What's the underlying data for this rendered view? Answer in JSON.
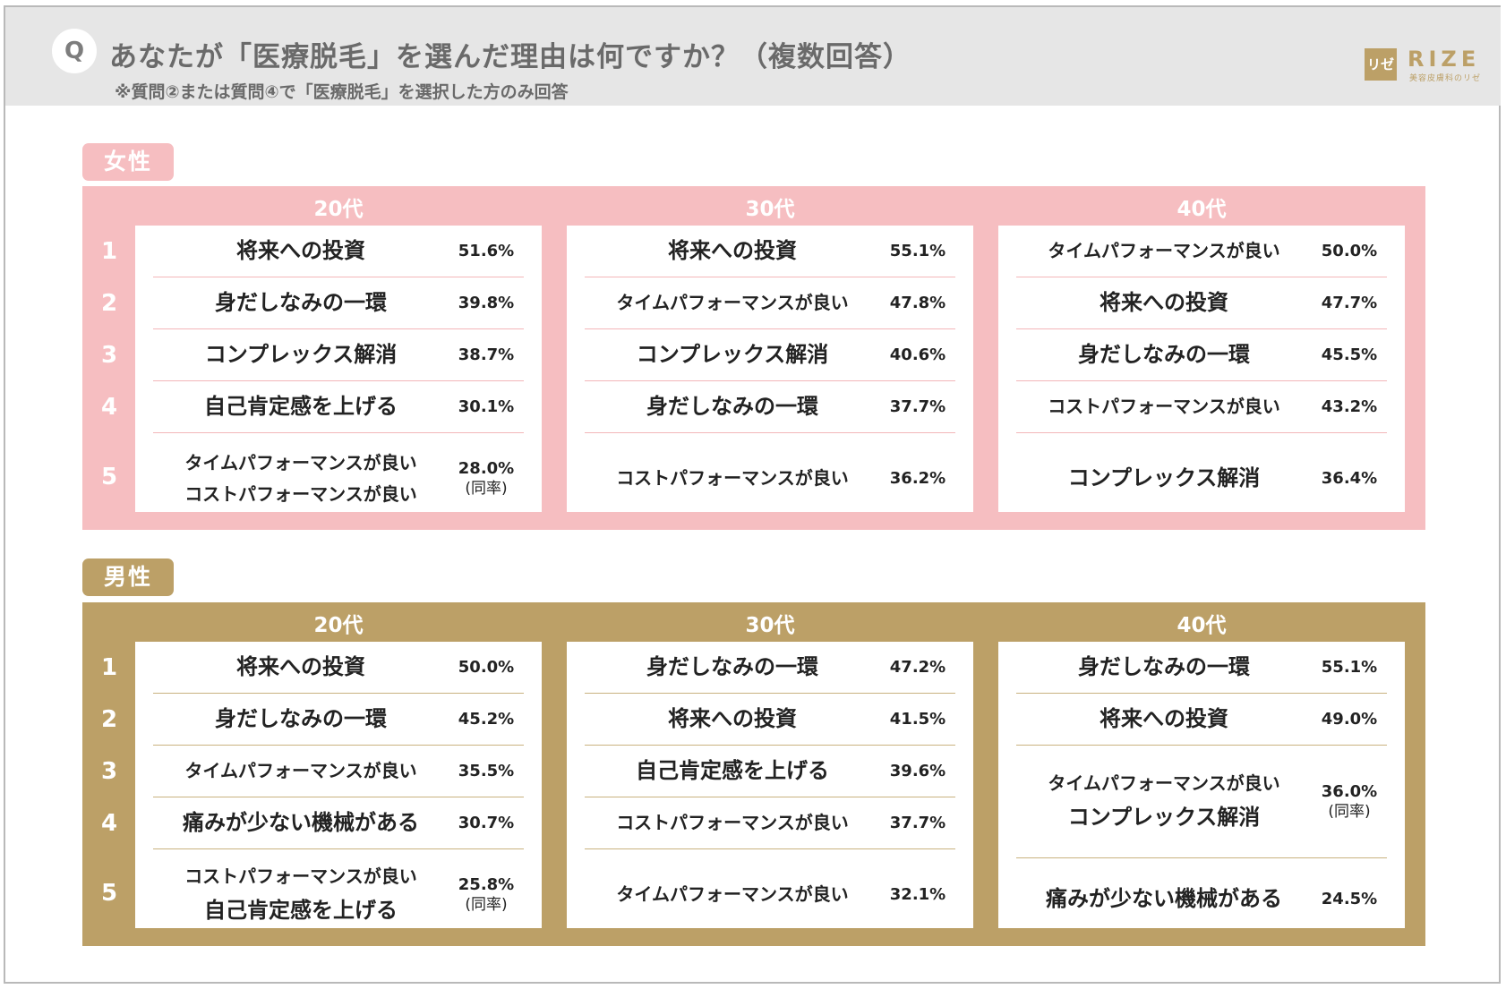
{
  "header": {
    "q_label": "Q",
    "title": "あなたが「医療脱毛」を選んだ理由は何ですか？（複数回答）",
    "subtitle": "※質問②または質問④で「医療脱毛」を選択した方のみ回答",
    "logo_mark": "リゼ",
    "logo_text": "RIZE",
    "logo_sub": "美容皮膚科のリゼ"
  },
  "colors": {
    "female": "#f6bec1",
    "male": "#bca067",
    "header_bg": "#e6e6e6"
  },
  "rank_labels": [
    "1",
    "2",
    "3",
    "4",
    "5"
  ],
  "note_same_rate": "（同率）",
  "female": {
    "label": "女性",
    "groups": [
      {
        "age": "20代",
        "rows": [
          {
            "items": [
              "将来への投資"
            ],
            "pct": "51.6%"
          },
          {
            "items": [
              "身だしなみの一環"
            ],
            "pct": "39.8%"
          },
          {
            "items": [
              "コンプレックス解消"
            ],
            "pct": "38.7%"
          },
          {
            "items": [
              "自己肯定感を上げる"
            ],
            "pct": "30.1%"
          },
          {
            "items": [
              "タイムパフォーマンスが良い",
              "コストパフォーマンスが良い"
            ],
            "pct": "28.0%",
            "note": "(同率)"
          }
        ]
      },
      {
        "age": "30代",
        "rows": [
          {
            "items": [
              "将来への投資"
            ],
            "pct": "55.1%"
          },
          {
            "items": [
              "タイムパフォーマンスが良い"
            ],
            "pct": "47.8%"
          },
          {
            "items": [
              "コンプレックス解消"
            ],
            "pct": "40.6%"
          },
          {
            "items": [
              "身だしなみの一環"
            ],
            "pct": "37.7%"
          },
          {
            "items": [
              "コストパフォーマンスが良い"
            ],
            "pct": "36.2%"
          }
        ]
      },
      {
        "age": "40代",
        "rows": [
          {
            "items": [
              "タイムパフォーマンスが良い"
            ],
            "pct": "50.0%"
          },
          {
            "items": [
              "将来への投資"
            ],
            "pct": "47.7%"
          },
          {
            "items": [
              "身だしなみの一環"
            ],
            "pct": "45.5%"
          },
          {
            "items": [
              "コストパフォーマンスが良い"
            ],
            "pct": "43.2%"
          },
          {
            "items": [
              "コンプレックス解消"
            ],
            "pct": "36.4%"
          }
        ]
      }
    ]
  },
  "male": {
    "label": "男性",
    "groups": [
      {
        "age": "20代",
        "rows": [
          {
            "items": [
              "将来への投資"
            ],
            "pct": "50.0%"
          },
          {
            "items": [
              "身だしなみの一環"
            ],
            "pct": "45.2%"
          },
          {
            "items": [
              "タイムパフォーマンスが良い"
            ],
            "pct": "35.5%"
          },
          {
            "items": [
              "痛みが少ない機械がある"
            ],
            "pct": "30.7%"
          },
          {
            "items": [
              "コストパフォーマンスが良い",
              "自己肯定感を上げる"
            ],
            "pct": "25.8%",
            "note": "(同率)"
          }
        ]
      },
      {
        "age": "30代",
        "rows": [
          {
            "items": [
              "身だしなみの一環"
            ],
            "pct": "47.2%"
          },
          {
            "items": [
              "将来への投資"
            ],
            "pct": "41.5%"
          },
          {
            "items": [
              "自己肯定感を上げる"
            ],
            "pct": "39.6%"
          },
          {
            "items": [
              "コストパフォーマンスが良い"
            ],
            "pct": "37.7%"
          },
          {
            "items": [
              "タイムパフォーマンスが良い"
            ],
            "pct": "32.1%"
          }
        ]
      },
      {
        "age": "40代",
        "rows": [
          {
            "items": [
              "身だしなみの一環"
            ],
            "pct": "55.1%"
          },
          {
            "items": [
              "将来への投資"
            ],
            "pct": "49.0%"
          },
          {
            "items": [
              "タイムパフォーマンスが良い",
              "コンプレックス解消"
            ],
            "pct": "36.0%",
            "note": "(同率)"
          },
          {
            "items": [
              "痛みが少ない機械がある"
            ],
            "pct": "24.5%"
          }
        ]
      }
    ]
  }
}
